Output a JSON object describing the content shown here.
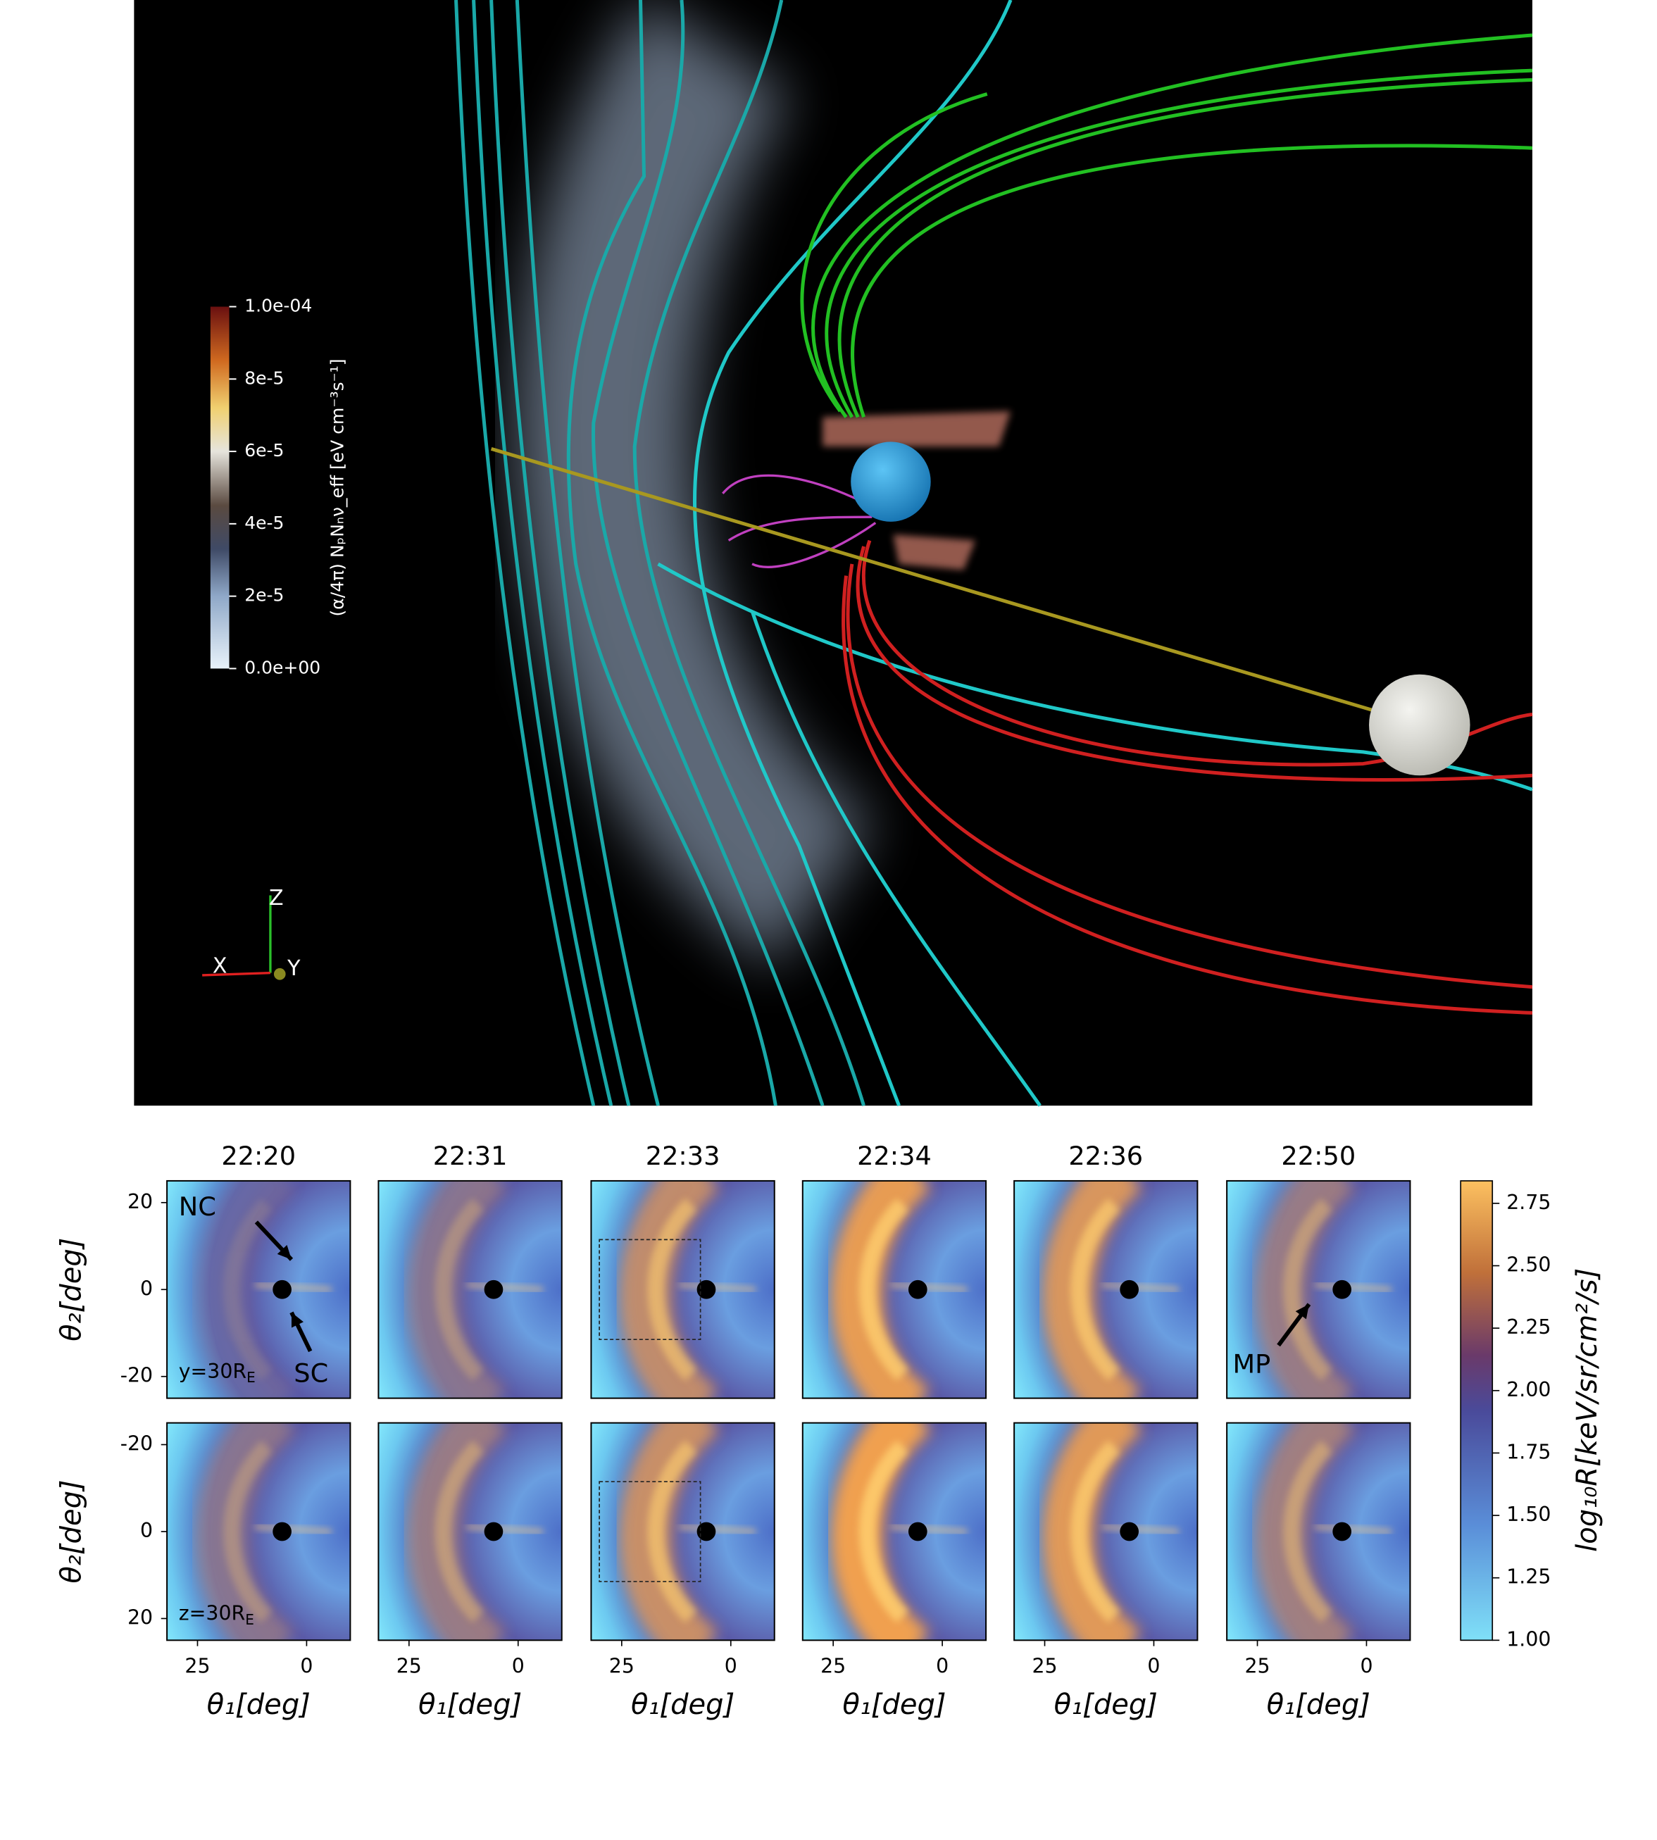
{
  "render": {
    "colorbar": {
      "label": "(α/4π) NₚNₙν_eff [eV cm⁻³s⁻¹]",
      "range": [
        0,
        0.0001
      ],
      "ticks": [
        {
          "value": 0.0001,
          "label": "1.0e-04"
        },
        {
          "value": 8e-05,
          "label": "8e-5"
        },
        {
          "value": 6e-05,
          "label": "6e-5"
        },
        {
          "value": 4e-05,
          "label": "4e-5"
        },
        {
          "value": 2e-05,
          "label": "2e-5"
        },
        {
          "value": 0,
          "label": "0.0e+00"
        }
      ]
    },
    "axis_labels": [
      "X",
      "Y",
      "Z"
    ]
  },
  "panels": {
    "titles": [
      "22:20",
      "22:31",
      "22:33",
      "22:34",
      "22:36",
      "22:50"
    ],
    "xlim": [
      32,
      -10
    ],
    "xticks": [
      25,
      0
    ],
    "xlabel": "θ₁[deg]",
    "ylabel": "θ₂[deg]",
    "rows": [
      {
        "ylim": [
          -25,
          25
        ],
        "yticks": [
          20,
          0,
          -20
        ],
        "label": {
          "text": "y=30R",
          "sub": "E"
        }
      },
      {
        "ylim": [
          25,
          -25
        ],
        "yticks": [
          -20,
          0,
          20
        ],
        "label": {
          "text": "z=30R",
          "sub": "E"
        }
      }
    ],
    "annotations": [
      "NC",
      "SC",
      "MP"
    ],
    "colorbar": {
      "label": "log₁₀R[keV/sr/cm²/s]",
      "range": [
        1,
        2.84
      ],
      "ticks": [
        {
          "value": 1,
          "label": "1.00"
        },
        1.25,
        {
          "value": 1.5,
          "label": "1.50"
        },
        1.75,
        {
          "value": 2,
          "label": "2.00"
        },
        2.25,
        {
          "value": 2.5,
          "label": "2.50"
        },
        2.75
      ]
    }
  }
}
